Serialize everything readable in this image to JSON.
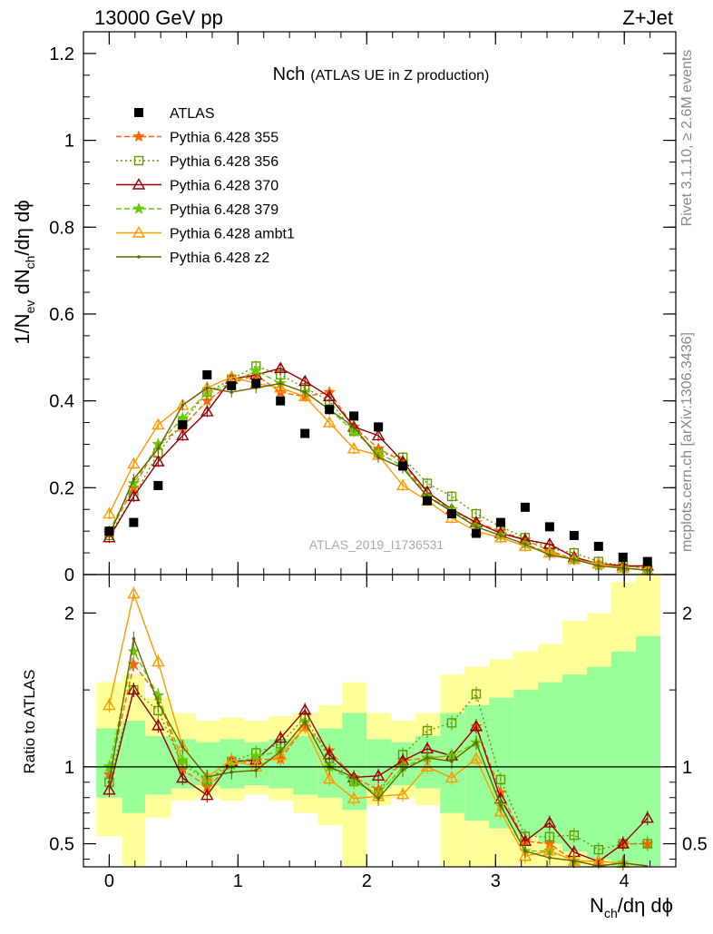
{
  "header": {
    "left": "13000 GeV pp",
    "right": "Z+Jet"
  },
  "side": {
    "rivet": "Rivet 3.1.10, ≥ 2.6M events",
    "mcplots": "mcplots.cern.ch [arXiv:1306.3436]"
  },
  "colors": {
    "data": "#000000",
    "band_outer": "#ffff99",
    "band_inner": "#99ff99"
  },
  "chart_data": {
    "type": "line",
    "title_main": "Nch",
    "title_sub": "(ATLAS UE in Z production)",
    "watermark": "ATLAS_2019_I1736531",
    "xlabel": "N",
    "xlabel_sub": "ch",
    "xlabel_tail": "/dη dϕ",
    "ylabel": "1/N",
    "ylabel_sub1": "ev",
    "ylabel_mid": " dN",
    "ylabel_sub2": "ch",
    "ylabel_tail": "/dη dϕ",
    "ratio_ylabel": "Ratio to ATLAS",
    "xlim": [
      -0.2,
      4.4
    ],
    "ylim": [
      0,
      1.25
    ],
    "ratio_ylim": [
      0.35,
      2.25
    ],
    "x_ticks": [
      "0",
      "1",
      "2",
      "3",
      "4"
    ],
    "y_ticks": [
      "0",
      "0.2",
      "0.4",
      "0.6",
      "0.8",
      "1",
      "1.2"
    ],
    "ratio_ticks": [
      "0.5",
      "1",
      "2"
    ],
    "x": [
      0.0,
      0.19,
      0.38,
      0.57,
      0.76,
      0.95,
      1.14,
      1.33,
      1.52,
      1.71,
      1.9,
      2.09,
      2.28,
      2.47,
      2.66,
      2.85,
      3.04,
      3.23,
      3.42,
      3.61,
      3.8,
      3.99,
      4.18
    ],
    "data": {
      "name": "ATLAS",
      "values": [
        0.1,
        0.12,
        0.205,
        0.345,
        0.46,
        0.435,
        0.44,
        0.4,
        0.325,
        0.38,
        0.365,
        0.34,
        0.25,
        0.17,
        0.14,
        0.095,
        0.12,
        0.155,
        0.11,
        0.09,
        0.065,
        0.04,
        0.03
      ]
    },
    "band_edges": [
      -0.1,
      0.1,
      0.28,
      0.48,
      0.67,
      0.86,
      1.05,
      1.24,
      1.43,
      1.62,
      1.81,
      2.0,
      2.19,
      2.38,
      2.57,
      2.76,
      2.95,
      3.14,
      3.33,
      3.52,
      3.71,
      3.9,
      4.09,
      4.28
    ],
    "band_outer_lo": [
      0.55,
      0.3,
      0.67,
      0.78,
      0.8,
      0.78,
      0.82,
      0.78,
      0.7,
      0.62,
      0.35,
      0.75,
      0.8,
      0.75,
      0.3,
      0.3,
      0.3,
      0.3,
      0.3,
      0.3,
      0.3,
      0.3,
      0.3
    ],
    "band_outer_hi": [
      1.55,
      1.6,
      1.45,
      1.35,
      1.3,
      1.32,
      1.3,
      1.33,
      1.35,
      1.4,
      1.55,
      1.35,
      1.3,
      1.35,
      1.6,
      1.65,
      1.7,
      1.75,
      1.8,
      1.95,
      2.0,
      2.2,
      2.4
    ],
    "band_inner_lo": [
      0.8,
      0.7,
      0.82,
      0.86,
      0.88,
      0.86,
      0.88,
      0.86,
      0.82,
      0.8,
      0.72,
      0.86,
      0.88,
      0.86,
      0.7,
      0.65,
      0.6,
      0.55,
      0.5,
      0.45,
      0.4,
      0.35,
      0.3
    ],
    "band_inner_hi": [
      1.25,
      1.3,
      1.2,
      1.18,
      1.16,
      1.18,
      1.16,
      1.18,
      1.2,
      1.25,
      1.35,
      1.18,
      1.16,
      1.2,
      1.35,
      1.4,
      1.45,
      1.5,
      1.55,
      1.6,
      1.65,
      1.75,
      1.85
    ],
    "series": [
      {
        "name": "Pythia 6.428 355",
        "color": "#ff6600",
        "dash": "6,3",
        "marker": "star",
        "values": [
          0.095,
          0.2,
          0.3,
          0.34,
          0.4,
          0.44,
          0.46,
          0.42,
          0.41,
          0.42,
          0.34,
          0.29,
          0.26,
          0.18,
          0.15,
          0.12,
          0.1,
          0.08,
          0.055,
          0.035,
          0.025,
          0.02,
          0.015
        ]
      },
      {
        "name": "Pythia 6.428 356",
        "color": "#669900",
        "dash": "2,3",
        "marker": "open-square",
        "values": [
          0.09,
          0.18,
          0.28,
          0.35,
          0.42,
          0.45,
          0.48,
          0.46,
          0.43,
          0.4,
          0.33,
          0.28,
          0.27,
          0.21,
          0.18,
          0.14,
          0.11,
          0.085,
          0.06,
          0.05,
          0.03,
          0.02,
          0.015
        ]
      },
      {
        "name": "Pythia 6.428 370",
        "color": "#990000",
        "dash": "",
        "marker": "open-triangle",
        "values": [
          0.085,
          0.18,
          0.26,
          0.32,
          0.375,
          0.45,
          0.46,
          0.475,
          0.445,
          0.41,
          0.34,
          0.32,
          0.26,
          0.19,
          0.15,
          0.12,
          0.095,
          0.08,
          0.07,
          0.04,
          0.025,
          0.02,
          0.02
        ]
      },
      {
        "name": "Pythia 6.428 379",
        "color": "#66cc00",
        "dash": "6,3",
        "marker": "star",
        "values": [
          0.1,
          0.21,
          0.3,
          0.36,
          0.42,
          0.44,
          0.47,
          0.44,
          0.42,
          0.38,
          0.33,
          0.28,
          0.25,
          0.18,
          0.15,
          0.11,
          0.09,
          0.07,
          0.05,
          0.035,
          0.02,
          0.015,
          0.01
        ]
      },
      {
        "name": "Pythia 6.428 ambt1",
        "color": "#ff9900",
        "dash": "",
        "marker": "open-triangle",
        "values": [
          0.14,
          0.255,
          0.345,
          0.39,
          0.43,
          0.455,
          0.44,
          0.43,
          0.41,
          0.35,
          0.29,
          0.275,
          0.205,
          0.17,
          0.13,
          0.1,
          0.085,
          0.065,
          0.05,
          0.035,
          0.025,
          0.015,
          0.01
        ]
      },
      {
        "name": "Pythia 6.428 z2",
        "color": "#666600",
        "dash": "",
        "marker": "dot",
        "values": [
          0.09,
          0.22,
          0.29,
          0.39,
          0.43,
          0.42,
          0.43,
          0.44,
          0.42,
          0.38,
          0.34,
          0.27,
          0.245,
          0.18,
          0.145,
          0.11,
          0.09,
          0.07,
          0.045,
          0.035,
          0.02,
          0.015,
          0.01
        ]
      }
    ]
  }
}
